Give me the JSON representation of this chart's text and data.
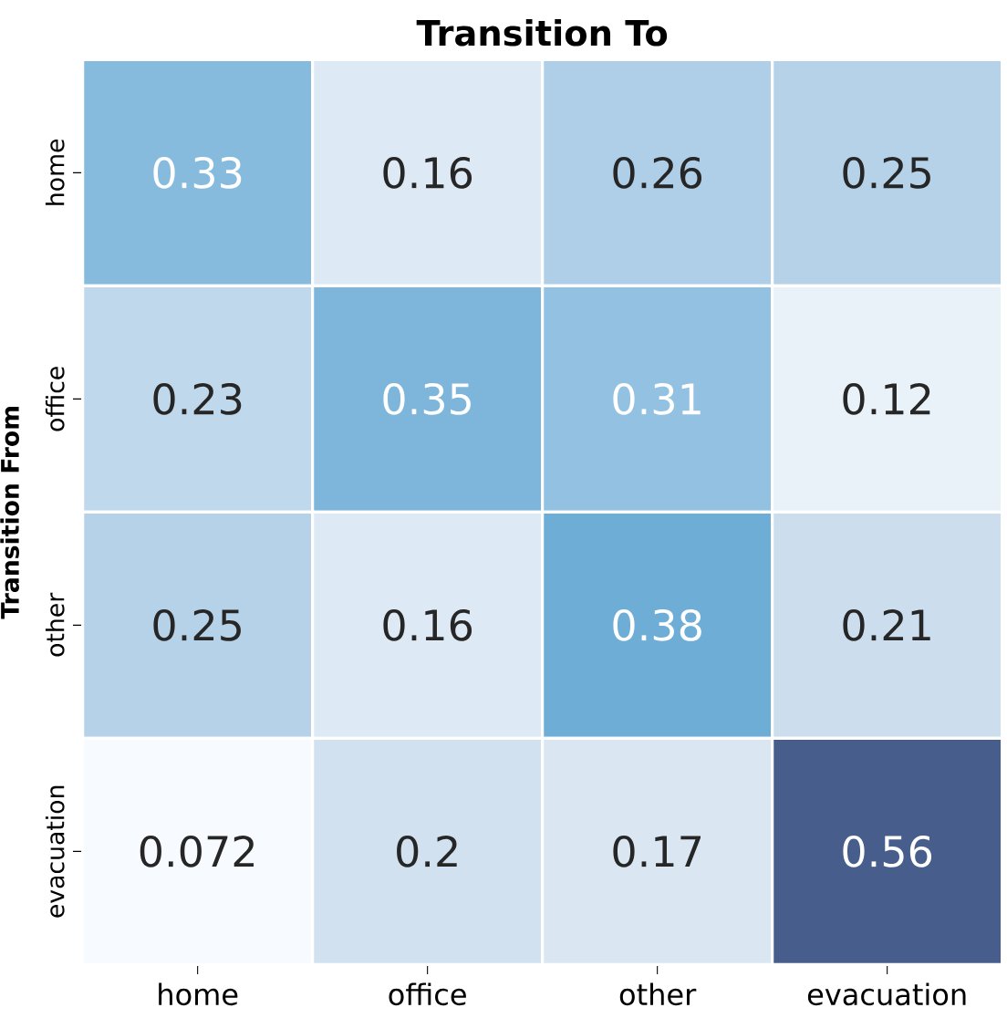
{
  "chart_data": {
    "type": "heatmap",
    "title": "Transition To",
    "ylabel": "Transition From",
    "categories": [
      "home",
      "office",
      "other",
      "evacuation"
    ],
    "y_categories": [
      "home",
      "office",
      "other",
      "evacuation"
    ],
    "cells": [
      [
        0.33,
        0.16,
        0.26,
        0.25
      ],
      [
        0.23,
        0.35,
        0.31,
        0.12
      ],
      [
        0.25,
        0.16,
        0.38,
        0.21
      ],
      [
        0.072,
        0.2,
        0.17,
        0.56
      ]
    ],
    "data_labels": true
  }
}
